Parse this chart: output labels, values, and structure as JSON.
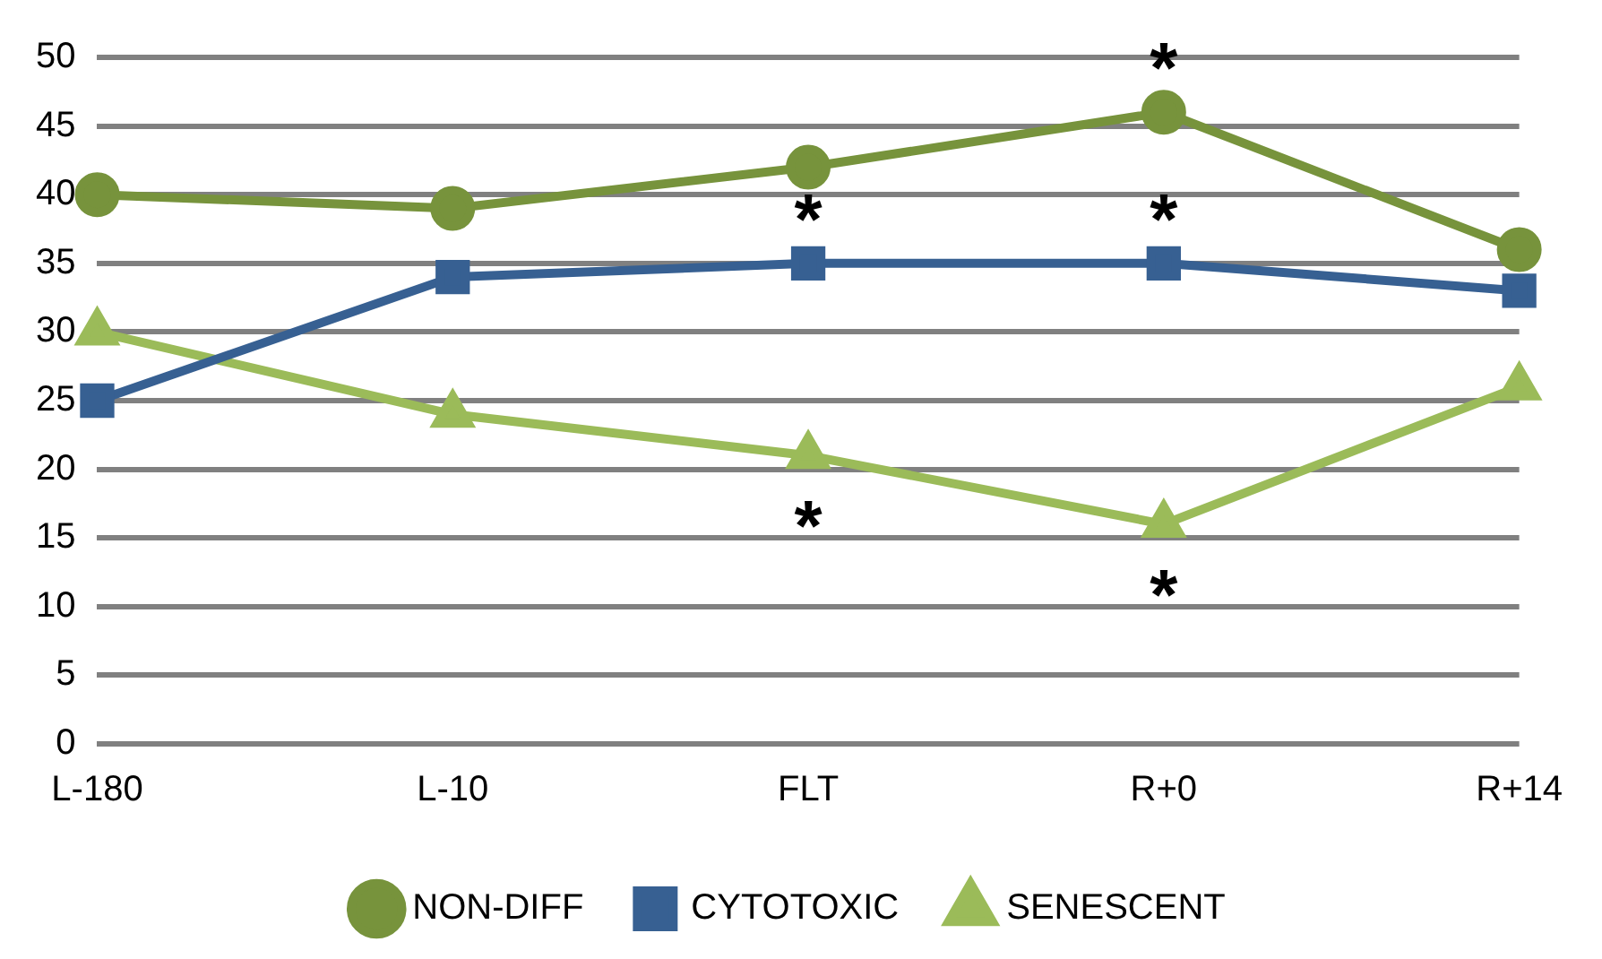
{
  "chart_data": {
    "type": "line",
    "categories": [
      "L-180",
      "L-10",
      "FLT",
      "R+0",
      "R+14"
    ],
    "series": [
      {
        "name": "NON-DIFF",
        "color": "#77933c",
        "marker": "circle",
        "values": [
          40,
          39,
          42,
          46,
          36
        ]
      },
      {
        "name": "CYTOTOXIC",
        "color": "#376092",
        "marker": "square",
        "values": [
          25,
          34,
          35,
          35,
          33
        ]
      },
      {
        "name": "SENESCENT",
        "color": "#9bbb59",
        "marker": "triangle",
        "values": [
          30,
          24,
          21,
          16,
          26
        ]
      }
    ],
    "ylim": [
      0,
      50
    ],
    "yticks": [
      0,
      5,
      10,
      15,
      20,
      25,
      30,
      35,
      40,
      45,
      50
    ],
    "grid": "y",
    "legend": "bottom",
    "line_style": "solid",
    "annotations": [
      {
        "text": "*",
        "x": "R+0",
        "y": 46
      },
      {
        "text": "*",
        "x": "FLT",
        "y": 35
      },
      {
        "text": "*",
        "x": "R+0",
        "y": 35
      },
      {
        "text": "*",
        "x": "FLT",
        "y": 21
      },
      {
        "text": "*",
        "x": "R+0",
        "y": 16
      }
    ]
  }
}
